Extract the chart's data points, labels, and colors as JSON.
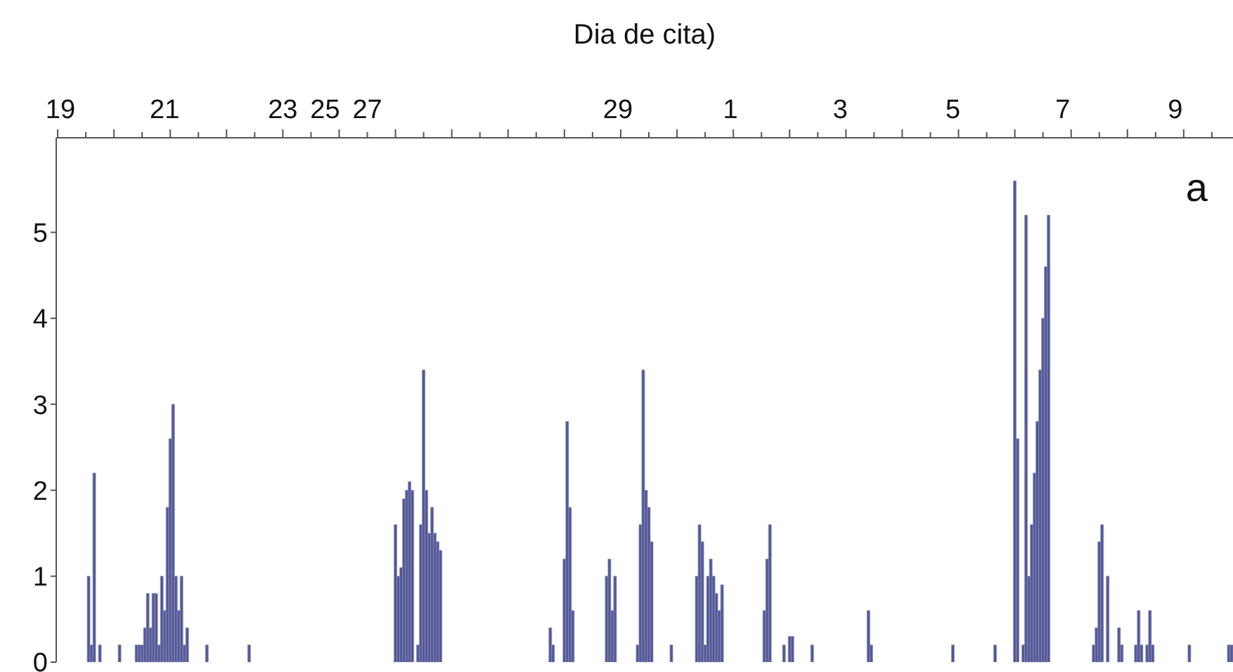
{
  "chart_data": {
    "type": "bar",
    "xlabel": "Dia de cita)",
    "annotations": [
      "a"
    ],
    "color": "#525797",
    "ylim": [
      0,
      6.1
    ],
    "yticks": [
      0,
      1,
      2,
      3,
      4,
      5
    ],
    "categories": [
      null,
      "19",
      null,
      null,
      null,
      null,
      null,
      null,
      null,
      null,
      null,
      null,
      null,
      null,
      null,
      null,
      null,
      null,
      null,
      null,
      null,
      null,
      null,
      null,
      null,
      null,
      null,
      null,
      null,
      null,
      null,
      null,
      null,
      null,
      null,
      null,
      null,
      null,
      "21",
      null,
      null,
      null,
      null,
      null,
      null,
      null,
      null,
      null,
      null,
      null,
      null,
      null,
      null,
      null,
      null,
      null,
      null,
      null,
      null,
      null,
      null,
      null,
      null,
      null,
      null,
      null,
      null,
      null,
      null,
      null,
      null,
      null,
      null,
      null,
      null,
      null,
      null,
      null,
      null,
      null,
      "23",
      null,
      null,
      null,
      null,
      null,
      null,
      null,
      null,
      null,
      null,
      null,
      null,
      null,
      null,
      "25",
      null,
      null,
      null,
      null,
      null,
      null,
      null,
      null,
      null,
      null,
      null,
      null,
      null,
      null,
      "27",
      null,
      null,
      null,
      null,
      null,
      null,
      null,
      null,
      null,
      null,
      null,
      null,
      null,
      null,
      null,
      null,
      null,
      null,
      null,
      null,
      null,
      null,
      null,
      null,
      null,
      null,
      null,
      null,
      null,
      null,
      null,
      null,
      null,
      null,
      null,
      null,
      null,
      null,
      null,
      null,
      null,
      null,
      null,
      null,
      null,
      null,
      null,
      null,
      null,
      null,
      null,
      null,
      null,
      null,
      null,
      null,
      null,
      null,
      null,
      null,
      null,
      null,
      null,
      null,
      null,
      null,
      null,
      null,
      null,
      null,
      null,
      null,
      null,
      null,
      null,
      null,
      null,
      null,
      null,
      null,
      null,
      null,
      null,
      null,
      null,
      null,
      null,
      null,
      "29",
      null,
      null,
      null,
      null,
      null,
      null,
      null,
      null,
      null,
      null,
      null,
      null,
      null,
      null,
      null,
      null,
      null,
      null,
      null,
      null,
      null,
      null,
      null,
      null,
      null,
      null,
      null,
      null,
      null,
      null,
      null,
      null,
      null,
      null,
      null,
      null,
      null,
      null,
      null,
      "1",
      null,
      null,
      null,
      null,
      null,
      null,
      null,
      null,
      null,
      null,
      null,
      null,
      null,
      null,
      null,
      null,
      null,
      null,
      null,
      null,
      null,
      null,
      null,
      null,
      null,
      null,
      null,
      null,
      null,
      null,
      null,
      null,
      null,
      null,
      null,
      null,
      null,
      null,
      "3",
      null,
      null,
      null,
      null,
      null,
      null,
      null,
      null,
      null,
      null,
      null,
      null,
      null,
      null,
      null,
      null,
      null,
      null,
      null,
      null,
      null,
      null,
      null,
      null,
      null,
      null,
      null,
      null,
      null,
      null,
      null,
      null,
      null,
      null,
      null,
      null,
      null,
      null,
      null,
      "5",
      null,
      null,
      null,
      null,
      null,
      null,
      null,
      null,
      null,
      null,
      null,
      null,
      null,
      null,
      null,
      null,
      null,
      null,
      null,
      null,
      null,
      null,
      null,
      null,
      null,
      null,
      null,
      null,
      null,
      null,
      null,
      null,
      null,
      null,
      null,
      null,
      null,
      null,
      "7",
      null,
      null,
      null,
      null,
      null,
      null,
      null,
      null,
      null,
      null,
      null,
      null,
      null,
      null,
      null,
      null,
      null,
      null,
      null,
      null,
      null,
      null,
      null,
      null,
      null,
      null,
      null,
      null,
      null,
      null,
      null,
      null,
      null,
      null,
      null,
      null,
      null,
      null,
      null,
      "9",
      null,
      null,
      null,
      null,
      null,
      null,
      null,
      null,
      null,
      null,
      null,
      null,
      null,
      null,
      null,
      null,
      null,
      null,
      null,
      null
    ],
    "values": [
      null,
      null,
      null,
      null,
      null,
      null,
      null,
      null,
      null,
      null,
      null,
      1.0,
      0.2,
      2.2,
      null,
      0.2,
      null,
      null,
      null,
      null,
      null,
      null,
      0.2,
      null,
      null,
      null,
      null,
      null,
      0.2,
      0.2,
      0.2,
      0.4,
      0.8,
      0.4,
      0.8,
      0.8,
      0.2,
      1.0,
      0.6,
      1.8,
      2.6,
      3.0,
      1.0,
      0.6,
      1.0,
      0.2,
      0.4,
      null,
      null,
      null,
      null,
      null,
      null,
      0.2,
      null,
      null,
      null,
      null,
      null,
      null,
      null,
      null,
      null,
      null,
      null,
      null,
      null,
      null,
      0.2,
      null,
      null,
      null,
      null,
      null,
      null,
      null,
      null,
      null,
      null,
      null,
      null,
      null,
      null,
      null,
      null,
      null,
      null,
      null,
      null,
      null,
      null,
      null,
      null,
      null,
      null,
      null,
      null,
      null,
      null,
      null,
      null,
      null,
      null,
      null,
      null,
      null,
      null,
      null,
      null,
      null,
      null,
      null,
      null,
      null,
      null,
      null,
      null,
      null,
      null,
      null,
      1.6,
      1.0,
      1.1,
      1.9,
      2.0,
      2.1,
      2.0,
      null,
      0.2,
      1.6,
      3.4,
      2.0,
      1.5,
      1.8,
      1.5,
      1.4,
      1.3,
      null,
      null,
      null,
      null,
      null,
      null,
      null,
      null,
      null,
      null,
      null,
      null,
      null,
      null,
      null,
      null,
      null,
      null,
      null,
      null,
      null,
      null,
      null,
      null,
      null,
      null,
      null,
      null,
      null,
      null,
      null,
      null,
      null,
      null,
      null,
      null,
      null,
      null,
      0.4,
      0.2,
      null,
      null,
      null,
      1.2,
      2.8,
      1.8,
      0.6,
      null,
      null,
      null,
      null,
      null,
      null,
      null,
      null,
      null,
      null,
      null,
      1.0,
      1.2,
      0.6,
      1.0,
      null,
      null,
      null,
      null,
      null,
      null,
      null,
      0.2,
      1.6,
      3.4,
      2.0,
      1.8,
      1.4,
      null,
      null,
      null,
      null,
      null,
      null,
      0.2,
      null,
      null,
      null,
      null,
      null,
      null,
      null,
      null,
      1.0,
      1.6,
      1.4,
      0.2,
      1.0,
      1.2,
      1.0,
      0.8,
      0.6,
      0.9,
      null,
      null,
      null,
      null,
      null,
      null,
      null,
      null,
      null,
      null,
      null,
      null,
      null,
      null,
      0.6,
      1.2,
      1.6,
      null,
      null,
      null,
      null,
      0.2,
      null,
      0.3,
      0.3,
      null,
      null,
      null,
      null,
      null,
      null,
      0.2,
      null,
      null,
      null,
      null,
      null,
      null,
      null,
      null,
      null,
      null,
      null,
      null,
      null,
      null,
      null,
      null,
      null,
      null,
      null,
      0.6,
      0.2,
      null,
      null,
      null,
      null,
      null,
      null,
      null,
      null,
      null,
      null,
      null,
      null,
      null,
      null,
      null,
      null,
      null,
      null,
      null,
      null,
      null,
      null,
      null,
      null,
      null,
      null,
      null,
      null,
      0.2,
      null,
      null,
      null,
      null,
      null,
      null,
      null,
      null,
      null,
      null,
      null,
      null,
      null,
      null,
      0.2,
      null,
      null,
      null,
      null,
      null,
      null,
      5.6,
      2.6,
      null,
      0.2,
      5.2,
      1.0,
      1.6,
      2.2,
      2.8,
      3.4,
      4.0,
      4.6,
      5.2,
      null,
      null,
      null,
      null,
      null,
      null,
      null,
      null,
      null,
      null,
      null,
      null,
      null,
      null,
      null,
      0.2,
      0.4,
      1.4,
      1.6,
      null,
      1.0,
      null,
      null,
      null,
      0.4,
      0.2,
      null,
      null,
      null,
      null,
      0.2,
      0.6,
      0.2,
      null,
      0.2,
      0.6,
      0.2,
      null,
      null,
      null,
      null,
      null,
      null,
      null,
      null,
      null,
      null,
      null,
      null,
      0.2,
      null,
      null,
      null,
      null,
      null,
      null,
      null,
      null,
      null,
      null,
      null,
      null,
      null,
      0.2,
      0.2
    ]
  }
}
